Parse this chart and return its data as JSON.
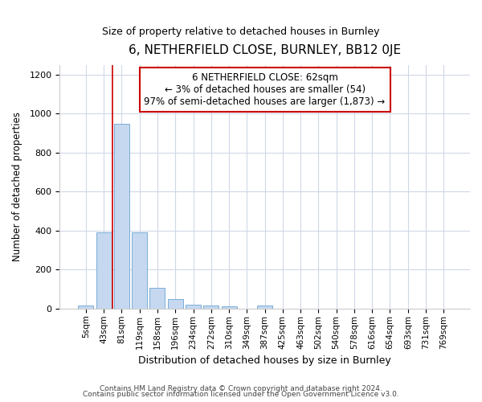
{
  "title": "6, NETHERFIELD CLOSE, BURNLEY, BB12 0JE",
  "subtitle": "Size of property relative to detached houses in Burnley",
  "xlabel": "Distribution of detached houses by size in Burnley",
  "ylabel": "Number of detached properties",
  "categories": [
    "5sqm",
    "43sqm",
    "81sqm",
    "119sqm",
    "158sqm",
    "196sqm",
    "234sqm",
    "272sqm",
    "310sqm",
    "349sqm",
    "387sqm",
    "425sqm",
    "463sqm",
    "502sqm",
    "540sqm",
    "578sqm",
    "616sqm",
    "654sqm",
    "693sqm",
    "731sqm",
    "769sqm"
  ],
  "values": [
    15,
    390,
    950,
    390,
    105,
    50,
    22,
    18,
    14,
    0,
    18,
    0,
    0,
    0,
    0,
    0,
    0,
    0,
    0,
    0,
    0
  ],
  "bar_color": "#c5d8f0",
  "bar_edge_color": "#7aaed6",
  "vline_x": 1.5,
  "vline_color": "#cc0000",
  "box_text": "6 NETHERFIELD CLOSE: 62sqm\n← 3% of detached houses are smaller (54)\n97% of semi-detached houses are larger (1,873) →",
  "box_color": "#cc0000",
  "box_bg": "#ffffff",
  "ylim": [
    0,
    1250
  ],
  "yticks": [
    0,
    200,
    400,
    600,
    800,
    1000,
    1200
  ],
  "footer1": "Contains HM Land Registry data © Crown copyright and database right 2024.",
  "footer2": "Contains public sector information licensed under the Open Government Licence v3.0.",
  "bg_color": "#ffffff",
  "plot_bg": "#ffffff",
  "grid_color": "#d0d8e8"
}
